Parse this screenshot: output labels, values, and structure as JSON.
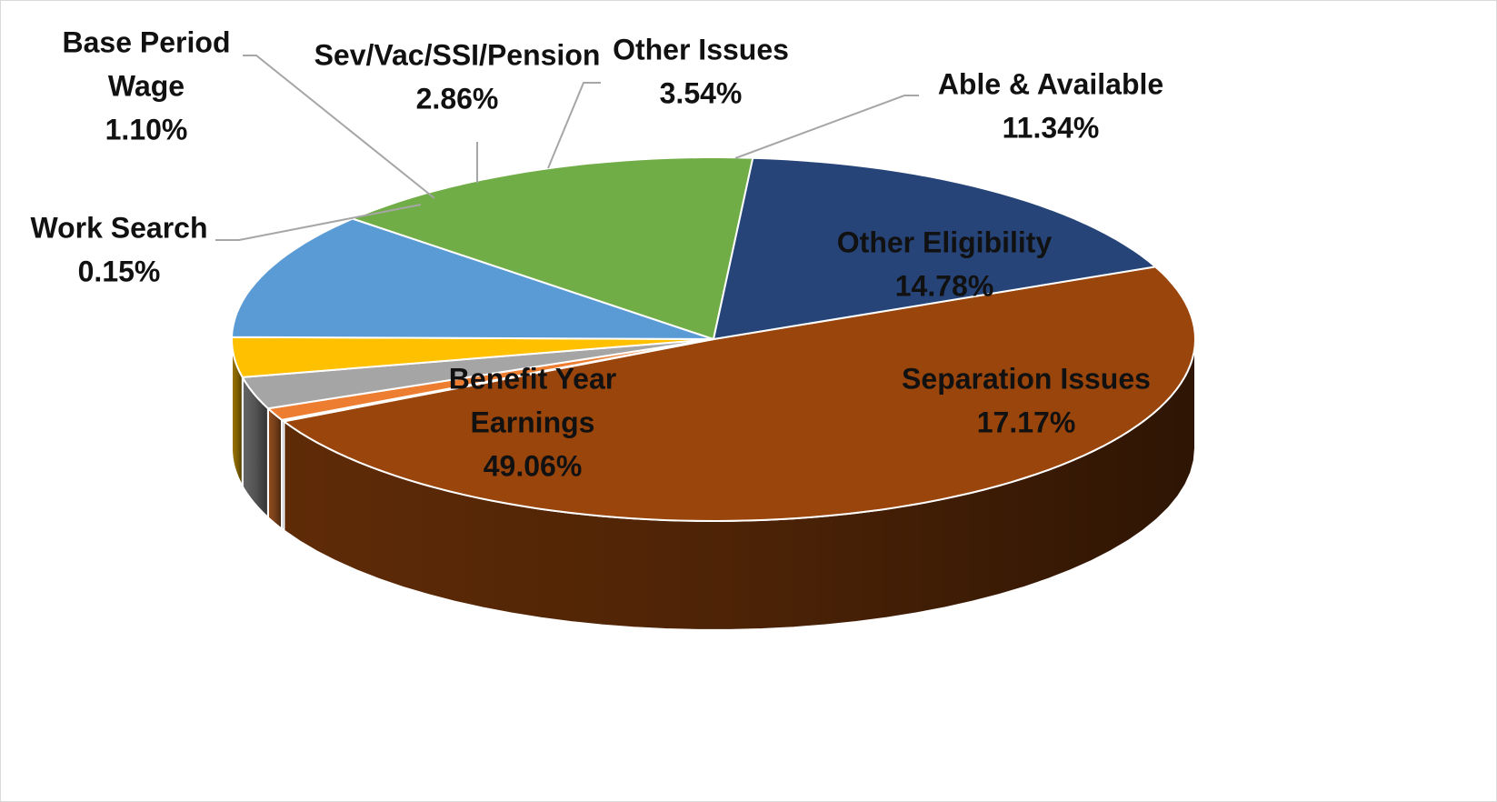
{
  "chart_data": {
    "type": "pie",
    "style": "3d",
    "title": "",
    "legend": "none",
    "slices": [
      {
        "label": "Benefit Year Earnings",
        "label_lines": [
          "Benefit Year",
          "Earnings"
        ],
        "value": 49.06,
        "value_text": "49.06%",
        "color": "#9A450C"
      },
      {
        "label": "Work Search",
        "label_lines": [
          "Work Search"
        ],
        "value": 0.15,
        "value_text": "0.15%",
        "color": "#2F5597"
      },
      {
        "label": "Base Period Wage",
        "label_lines": [
          "Base Period",
          "Wage"
        ],
        "value": 1.1,
        "value_text": "1.10%",
        "color": "#ED7D31"
      },
      {
        "label": "Sev/Vac/SSI/Pension",
        "label_lines": [
          "Sev/Vac/SSI/Pension"
        ],
        "value": 2.86,
        "value_text": "2.86%",
        "color": "#A5A5A5"
      },
      {
        "label": "Other Issues",
        "label_lines": [
          "Other Issues"
        ],
        "value": 3.54,
        "value_text": "3.54%",
        "color": "#FFC000"
      },
      {
        "label": "Able & Available",
        "label_lines": [
          "Able & Available"
        ],
        "value": 11.34,
        "value_text": "11.34%",
        "color": "#5B9BD5"
      },
      {
        "label": "Other Eligibility",
        "label_lines": [
          "Other Eligibility"
        ],
        "value": 14.78,
        "value_text": "14.78%",
        "color": "#70AD47"
      },
      {
        "label": "Separation Issues",
        "label_lines": [
          "Separation Issues"
        ],
        "value": 17.17,
        "value_text": "17.17%",
        "color": "#264478"
      }
    ]
  }
}
